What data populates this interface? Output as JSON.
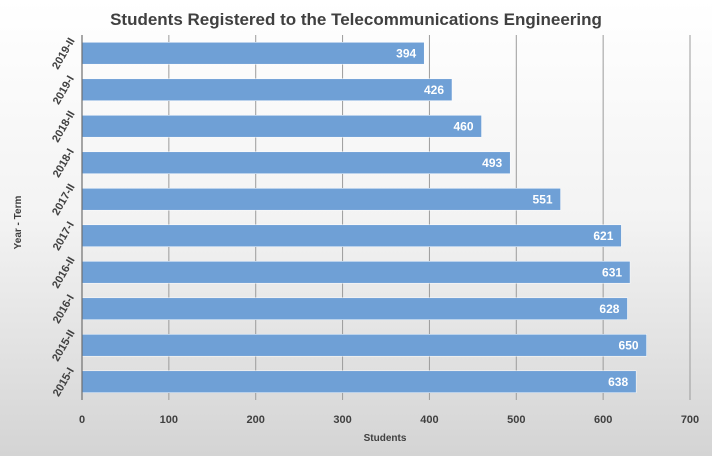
{
  "chart_data": {
    "type": "bar",
    "orientation": "horizontal",
    "title": "Students Registered to the Telecommunications Engineering",
    "xlabel": "Students",
    "ylabel": "Year - Term",
    "xlim": [
      0,
      700
    ],
    "xticks": [
      0,
      100,
      200,
      300,
      400,
      500,
      600,
      700
    ],
    "grid": true,
    "legend": "none",
    "bar_color": "#6fa0d6",
    "categories": [
      "2019-II",
      "2019-I",
      "2018-II",
      "2018-I",
      "2017-II",
      "2017-I",
      "2016-II",
      "2016-I",
      "2015-II",
      "2015-I"
    ],
    "values": [
      394,
      426,
      460,
      493,
      551,
      621,
      631,
      628,
      650,
      638
    ]
  }
}
